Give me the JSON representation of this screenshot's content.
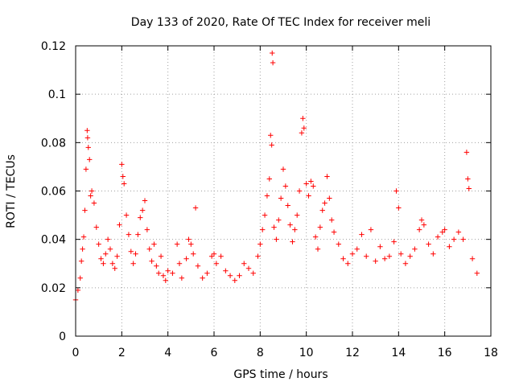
{
  "chart_data": {
    "type": "scatter",
    "title": "Day 133 of 2020, Rate Of TEC Index for receiver meli",
    "xlabel": "GPS time / hours",
    "ylabel": "ROTI / TECUs",
    "xlim": [
      0,
      18
    ],
    "ylim": [
      0,
      0.12
    ],
    "xticks": [
      0,
      2,
      4,
      6,
      8,
      10,
      12,
      14,
      16,
      18
    ],
    "yticks": [
      0,
      0.02,
      0.04,
      0.06,
      0.08,
      0.1,
      0.12
    ],
    "xtick_labels": [
      "0",
      "2",
      "4",
      "6",
      "8",
      "10",
      "12",
      "14",
      "16",
      "18"
    ],
    "ytick_labels": [
      "0",
      "0.02",
      "0.04",
      "0.06",
      "0.08",
      "0.1",
      "0.12"
    ],
    "grid": true,
    "marker": "+",
    "series_color": "#ff0000",
    "series": [
      {
        "name": "ROTI",
        "points": [
          [
            0.0,
            0.015
          ],
          [
            0.1,
            0.019
          ],
          [
            0.2,
            0.024
          ],
          [
            0.25,
            0.031
          ],
          [
            0.3,
            0.036
          ],
          [
            0.35,
            0.041
          ],
          [
            0.4,
            0.052
          ],
          [
            0.45,
            0.069
          ],
          [
            0.5,
            0.085
          ],
          [
            0.52,
            0.082
          ],
          [
            0.55,
            0.078
          ],
          [
            0.6,
            0.073
          ],
          [
            0.65,
            0.058
          ],
          [
            0.7,
            0.06
          ],
          [
            0.8,
            0.055
          ],
          [
            0.9,
            0.045
          ],
          [
            1.0,
            0.038
          ],
          [
            1.1,
            0.032
          ],
          [
            1.2,
            0.03
          ],
          [
            1.3,
            0.034
          ],
          [
            1.4,
            0.04
          ],
          [
            1.5,
            0.036
          ],
          [
            1.6,
            0.03
          ],
          [
            1.7,
            0.028
          ],
          [
            1.8,
            0.033
          ],
          [
            1.9,
            0.046
          ],
          [
            2.0,
            0.071
          ],
          [
            2.05,
            0.066
          ],
          [
            2.1,
            0.063
          ],
          [
            2.2,
            0.05
          ],
          [
            2.3,
            0.042
          ],
          [
            2.4,
            0.035
          ],
          [
            2.5,
            0.03
          ],
          [
            2.6,
            0.034
          ],
          [
            2.7,
            0.042
          ],
          [
            2.8,
            0.049
          ],
          [
            2.9,
            0.052
          ],
          [
            3.0,
            0.056
          ],
          [
            3.1,
            0.044
          ],
          [
            3.2,
            0.036
          ],
          [
            3.3,
            0.031
          ],
          [
            3.4,
            0.038
          ],
          [
            3.5,
            0.029
          ],
          [
            3.6,
            0.026
          ],
          [
            3.7,
            0.033
          ],
          [
            3.8,
            0.025
          ],
          [
            3.9,
            0.023
          ],
          [
            4.0,
            0.027
          ],
          [
            4.2,
            0.026
          ],
          [
            4.4,
            0.038
          ],
          [
            4.5,
            0.03
          ],
          [
            4.6,
            0.024
          ],
          [
            4.8,
            0.032
          ],
          [
            4.9,
            0.04
          ],
          [
            5.0,
            0.038
          ],
          [
            5.1,
            0.034
          ],
          [
            5.2,
            0.053
          ],
          [
            5.3,
            0.029
          ],
          [
            5.5,
            0.024
          ],
          [
            5.7,
            0.026
          ],
          [
            5.9,
            0.033
          ],
          [
            6.0,
            0.034
          ],
          [
            6.1,
            0.03
          ],
          [
            6.3,
            0.033
          ],
          [
            6.5,
            0.027
          ],
          [
            6.7,
            0.025
          ],
          [
            6.9,
            0.023
          ],
          [
            7.1,
            0.025
          ],
          [
            7.3,
            0.03
          ],
          [
            7.5,
            0.028
          ],
          [
            7.7,
            0.026
          ],
          [
            7.9,
            0.033
          ],
          [
            8.0,
            0.038
          ],
          [
            8.1,
            0.044
          ],
          [
            8.2,
            0.05
          ],
          [
            8.3,
            0.058
          ],
          [
            8.4,
            0.065
          ],
          [
            8.45,
            0.083
          ],
          [
            8.5,
            0.079
          ],
          [
            8.52,
            0.117
          ],
          [
            8.55,
            0.113
          ],
          [
            8.6,
            0.045
          ],
          [
            8.7,
            0.04
          ],
          [
            8.8,
            0.048
          ],
          [
            8.9,
            0.057
          ],
          [
            9.0,
            0.069
          ],
          [
            9.1,
            0.062
          ],
          [
            9.2,
            0.054
          ],
          [
            9.3,
            0.046
          ],
          [
            9.4,
            0.039
          ],
          [
            9.5,
            0.044
          ],
          [
            9.6,
            0.05
          ],
          [
            9.7,
            0.06
          ],
          [
            9.8,
            0.084
          ],
          [
            9.85,
            0.09
          ],
          [
            9.9,
            0.086
          ],
          [
            10.0,
            0.063
          ],
          [
            10.1,
            0.058
          ],
          [
            10.2,
            0.064
          ],
          [
            10.3,
            0.062
          ],
          [
            10.4,
            0.041
          ],
          [
            10.5,
            0.036
          ],
          [
            10.6,
            0.045
          ],
          [
            10.7,
            0.052
          ],
          [
            10.8,
            0.055
          ],
          [
            10.9,
            0.066
          ],
          [
            11.0,
            0.057
          ],
          [
            11.1,
            0.048
          ],
          [
            11.2,
            0.043
          ],
          [
            11.4,
            0.038
          ],
          [
            11.6,
            0.032
          ],
          [
            11.8,
            0.03
          ],
          [
            12.0,
            0.034
          ],
          [
            12.2,
            0.036
          ],
          [
            12.4,
            0.042
          ],
          [
            12.6,
            0.033
          ],
          [
            12.8,
            0.044
          ],
          [
            13.0,
            0.031
          ],
          [
            13.2,
            0.037
          ],
          [
            13.4,
            0.032
          ],
          [
            13.6,
            0.033
          ],
          [
            13.8,
            0.039
          ],
          [
            13.9,
            0.06
          ],
          [
            14.0,
            0.053
          ],
          [
            14.1,
            0.034
          ],
          [
            14.3,
            0.03
          ],
          [
            14.5,
            0.033
          ],
          [
            14.7,
            0.036
          ],
          [
            14.9,
            0.044
          ],
          [
            15.0,
            0.048
          ],
          [
            15.1,
            0.046
          ],
          [
            15.3,
            0.038
          ],
          [
            15.5,
            0.034
          ],
          [
            15.7,
            0.041
          ],
          [
            15.9,
            0.043
          ],
          [
            16.0,
            0.044
          ],
          [
            16.2,
            0.037
          ],
          [
            16.4,
            0.04
          ],
          [
            16.6,
            0.043
          ],
          [
            16.8,
            0.04
          ],
          [
            16.95,
            0.076
          ],
          [
            17.0,
            0.065
          ],
          [
            17.05,
            0.061
          ],
          [
            17.2,
            0.032
          ],
          [
            17.4,
            0.026
          ]
        ]
      }
    ]
  }
}
